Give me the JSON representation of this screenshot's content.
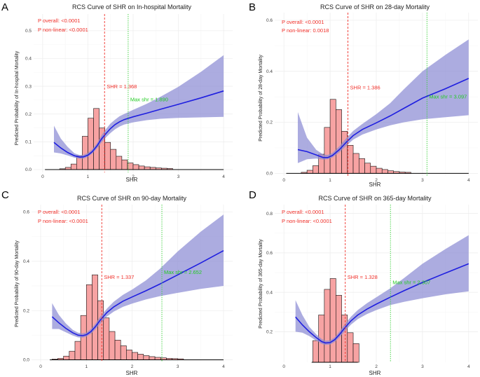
{
  "figure": {
    "colors": {
      "bar_fill": "#f7a3a3",
      "bar_stroke": "#111111",
      "band": "#8c8cd4",
      "curve": "#1f1fe0",
      "red_line": "#f0302a",
      "green_line": "#39d039",
      "grid": "#ececec",
      "baseline": "#000000"
    }
  },
  "chart_data": [
    {
      "panel_label": "A",
      "type": "line",
      "title": "RCS Curve of SHR on In-hospital Mortality",
      "xlabel": "SHR",
      "ylabel": "Predicted Probability of In-hospital Mortality",
      "xlim": [
        -0.2,
        4.2
      ],
      "ylim": [
        -0.01,
        0.56
      ],
      "xticks": [
        0,
        1,
        2,
        3,
        4
      ],
      "xtick_labels": [
        "0",
        "1",
        "2",
        "3",
        "4"
      ],
      "yticks": [
        0.0,
        0.1,
        0.2,
        0.3,
        0.4,
        0.5
      ],
      "ytick_labels": [
        "0.0",
        "0.1",
        "0.2",
        "0.3",
        "0.4",
        "0.5"
      ],
      "annotations": {
        "p_overall": "P overall: <0.0001",
        "p_nonlinear": "P non-linear: <0.0001"
      },
      "cutpoint": {
        "x": 1.368,
        "label": "SHR = 1.368"
      },
      "max_shr": {
        "x": 1.89,
        "label": "Max shr = 1.890"
      },
      "curve": {
        "x": [
          0.25,
          0.4,
          0.55,
          0.7,
          0.82,
          0.9,
          1.0,
          1.1,
          1.2,
          1.3,
          1.4,
          1.5,
          1.6,
          1.7,
          1.8,
          2.0,
          2.3,
          2.6,
          3.0,
          3.5,
          4.0
        ],
        "y": [
          0.098,
          0.078,
          0.062,
          0.05,
          0.045,
          0.046,
          0.052,
          0.065,
          0.085,
          0.11,
          0.13,
          0.148,
          0.162,
          0.172,
          0.18,
          0.19,
          0.203,
          0.217,
          0.235,
          0.258,
          0.283
        ],
        "lower": [
          0.062,
          0.058,
          0.051,
          0.043,
          0.039,
          0.04,
          0.046,
          0.058,
          0.076,
          0.098,
          0.116,
          0.132,
          0.145,
          0.155,
          0.162,
          0.17,
          0.178,
          0.183,
          0.186,
          0.188,
          0.19
        ],
        "upper": [
          0.158,
          0.112,
          0.082,
          0.059,
          0.052,
          0.053,
          0.06,
          0.074,
          0.095,
          0.123,
          0.146,
          0.166,
          0.18,
          0.192,
          0.2,
          0.215,
          0.237,
          0.262,
          0.298,
          0.352,
          0.412
        ]
      },
      "histogram": {
        "bin_width": 0.125,
        "bin_starts": [
          0.375,
          0.5,
          0.625,
          0.75,
          0.875,
          1.0,
          1.125,
          1.25,
          1.375,
          1.5,
          1.625,
          1.75,
          1.875,
          2.0,
          2.125,
          2.25,
          2.375,
          2.5,
          2.625,
          2.75
        ],
        "heights": [
          0.003,
          0.008,
          0.02,
          0.05,
          0.12,
          0.185,
          0.22,
          0.15,
          0.098,
          0.073,
          0.048,
          0.035,
          0.024,
          0.018,
          0.013,
          0.01,
          0.008,
          0.006,
          0.005,
          0.004
        ],
        "baseline_x": [
          0.05,
          4.0
        ]
      }
    },
    {
      "panel_label": "B",
      "type": "line",
      "title": "RCS Curve of SHR on 28-day Mortality",
      "xlabel": "SHR",
      "ylabel": "Predicted Probability of 28-day Mortality",
      "xlim": [
        -0.2,
        4.2
      ],
      "ylim": [
        -0.01,
        0.63
      ],
      "xticks": [
        0,
        1,
        2,
        3,
        4
      ],
      "xtick_labels": [
        "0",
        "1",
        "2",
        "3",
        "4"
      ],
      "yticks": [
        0.0,
        0.2,
        0.4,
        0.6
      ],
      "ytick_labels": [
        "0.0",
        "0.2",
        "0.4",
        "0.6"
      ],
      "annotations": {
        "p_overall": "P overall: <0.0001",
        "p_nonlinear": "P non-linear: 0.0018"
      },
      "cutpoint": {
        "x": 1.386,
        "label": "SHR = 1.386"
      },
      "max_shr": {
        "x": 3.097,
        "label": "Max shr = 3.097"
      },
      "curve": {
        "x": [
          0.3,
          0.5,
          0.7,
          0.85,
          0.95,
          1.05,
          1.2,
          1.35,
          1.5,
          1.7,
          2.0,
          2.3,
          2.6,
          3.0,
          3.5,
          4.0
        ],
        "y": [
          0.093,
          0.085,
          0.072,
          0.062,
          0.062,
          0.07,
          0.093,
          0.122,
          0.148,
          0.172,
          0.198,
          0.225,
          0.255,
          0.295,
          0.332,
          0.372
        ],
        "lower": [
          0.04,
          0.055,
          0.058,
          0.054,
          0.055,
          0.062,
          0.082,
          0.108,
          0.132,
          0.152,
          0.172,
          0.188,
          0.2,
          0.212,
          0.22,
          0.228
        ],
        "upper": [
          0.24,
          0.14,
          0.092,
          0.074,
          0.072,
          0.08,
          0.106,
          0.138,
          0.166,
          0.194,
          0.232,
          0.275,
          0.33,
          0.4,
          0.465,
          0.525
        ]
      },
      "histogram": {
        "bin_width": 0.125,
        "bin_starts": [
          0.375,
          0.5,
          0.625,
          0.75,
          0.875,
          1.0,
          1.125,
          1.25,
          1.375,
          1.5,
          1.625,
          1.75,
          1.875,
          2.0,
          2.125,
          2.25,
          2.375,
          2.5,
          2.625
        ],
        "heights": [
          0.004,
          0.012,
          0.03,
          0.075,
          0.18,
          0.29,
          0.25,
          0.165,
          0.11,
          0.078,
          0.058,
          0.04,
          0.028,
          0.02,
          0.015,
          0.01,
          0.007,
          0.005,
          0.004
        ],
        "baseline_x": [
          0.05,
          4.0
        ]
      }
    },
    {
      "panel_label": "C",
      "type": "line",
      "title": "RCS Curve of SHR on 90-day Mortality",
      "xlabel": "SHR",
      "ylabel": "Predicted Probability of 90-day Mortality",
      "xlim": [
        -0.2,
        4.2
      ],
      "ylim": [
        -0.01,
        0.63
      ],
      "xticks": [
        0,
        1,
        2,
        3,
        4
      ],
      "xtick_labels": [
        "0",
        "1",
        "2",
        "3",
        "4"
      ],
      "yticks": [
        0.0,
        0.2,
        0.4,
        0.6
      ],
      "ytick_labels": [
        "0.0",
        "0.2",
        "0.4",
        "0.6"
      ],
      "annotations": {
        "p_overall": "P overall: <0.0001",
        "p_nonlinear": "P non-linear: <0.0001"
      },
      "cutpoint": {
        "x": 1.337,
        "label": "SHR = 1.337"
      },
      "max_shr": {
        "x": 2.652,
        "label": "Max shr = 2.652"
      },
      "curve": {
        "x": [
          0.25,
          0.4,
          0.55,
          0.7,
          0.82,
          0.92,
          1.0,
          1.1,
          1.2,
          1.3,
          1.45,
          1.6,
          1.8,
          2.0,
          2.3,
          2.6,
          3.0,
          3.5,
          4.0
        ],
        "y": [
          0.175,
          0.15,
          0.128,
          0.11,
          0.1,
          0.098,
          0.102,
          0.115,
          0.135,
          0.16,
          0.192,
          0.215,
          0.238,
          0.255,
          0.28,
          0.307,
          0.345,
          0.393,
          0.443
        ],
        "lower": [
          0.125,
          0.125,
          0.112,
          0.099,
          0.091,
          0.09,
          0.094,
          0.106,
          0.124,
          0.146,
          0.176,
          0.196,
          0.215,
          0.228,
          0.245,
          0.258,
          0.272,
          0.288,
          0.3
        ],
        "upper": [
          0.23,
          0.182,
          0.148,
          0.122,
          0.11,
          0.107,
          0.111,
          0.125,
          0.147,
          0.174,
          0.208,
          0.236,
          0.264,
          0.285,
          0.322,
          0.368,
          0.44,
          0.52,
          0.59
        ]
      },
      "histogram": {
        "bin_width": 0.125,
        "bin_starts": [
          0.25,
          0.375,
          0.5,
          0.625,
          0.75,
          0.875,
          1.0,
          1.125,
          1.25,
          1.375,
          1.5,
          1.625,
          1.75,
          1.875,
          2.0,
          2.125,
          2.25,
          2.375,
          2.5,
          2.625,
          2.75,
          2.875,
          3.0
        ],
        "heights": [
          0.003,
          0.006,
          0.015,
          0.035,
          0.075,
          0.18,
          0.305,
          0.345,
          0.24,
          0.17,
          0.115,
          0.08,
          0.057,
          0.04,
          0.03,
          0.023,
          0.017,
          0.013,
          0.01,
          0.008,
          0.006,
          0.005,
          0.004
        ],
        "baseline_x": [
          0.2,
          4.0
        ]
      }
    },
    {
      "panel_label": "D",
      "type": "line",
      "title": "RCS Curve of SHR on 365-day Mortality",
      "xlabel": "SHR",
      "ylabel": "Predicted Probability of 365-day Mortality",
      "xlim": [
        -0.2,
        4.2
      ],
      "ylim": [
        0.045,
        0.845
      ],
      "xticks": [
        0,
        1,
        2,
        3,
        4
      ],
      "xtick_labels": [
        "0",
        "1",
        "2",
        "3",
        "4"
      ],
      "yticks": [
        0.2,
        0.4,
        0.6,
        0.8
      ],
      "ytick_labels": [
        "0.2",
        "0.4",
        "0.6",
        "0.8"
      ],
      "annotations": {
        "p_overall": "P overall: <0.0001",
        "p_nonlinear": "P non-linear: <0.0001"
      },
      "cutpoint": {
        "x": 1.328,
        "label": "SHR = 1.328"
      },
      "max_shr": {
        "x": 2.307,
        "label": "Max shr = 2.307"
      },
      "curve": {
        "x": [
          0.25,
          0.4,
          0.55,
          0.7,
          0.82,
          0.9,
          1.0,
          1.1,
          1.2,
          1.3,
          1.45,
          1.6,
          1.8,
          2.0,
          2.3,
          2.6,
          3.0,
          3.5,
          4.0
        ],
        "y": [
          0.275,
          0.235,
          0.2,
          0.17,
          0.15,
          0.143,
          0.145,
          0.16,
          0.185,
          0.215,
          0.255,
          0.285,
          0.315,
          0.34,
          0.375,
          0.408,
          0.45,
          0.498,
          0.545
        ],
        "lower": [
          0.2,
          0.195,
          0.178,
          0.155,
          0.138,
          0.133,
          0.135,
          0.148,
          0.17,
          0.198,
          0.236,
          0.264,
          0.29,
          0.31,
          0.335,
          0.352,
          0.37,
          0.39,
          0.405
        ],
        "upper": [
          0.36,
          0.285,
          0.225,
          0.187,
          0.163,
          0.154,
          0.156,
          0.172,
          0.2,
          0.233,
          0.276,
          0.31,
          0.345,
          0.375,
          0.42,
          0.472,
          0.545,
          0.62,
          0.69
        ]
      },
      "histogram": {
        "bin_width": 0.125,
        "bin_starts": [
          0.625,
          0.75,
          0.875,
          1.0,
          1.125,
          1.25,
          1.375,
          1.5
        ],
        "heights": [
          0.11,
          0.24,
          0.37,
          0.425,
          0.34,
          0.24,
          0.15,
          0.095
        ],
        "baseline_x": [
          0.6,
          1.6
        ]
      }
    }
  ]
}
